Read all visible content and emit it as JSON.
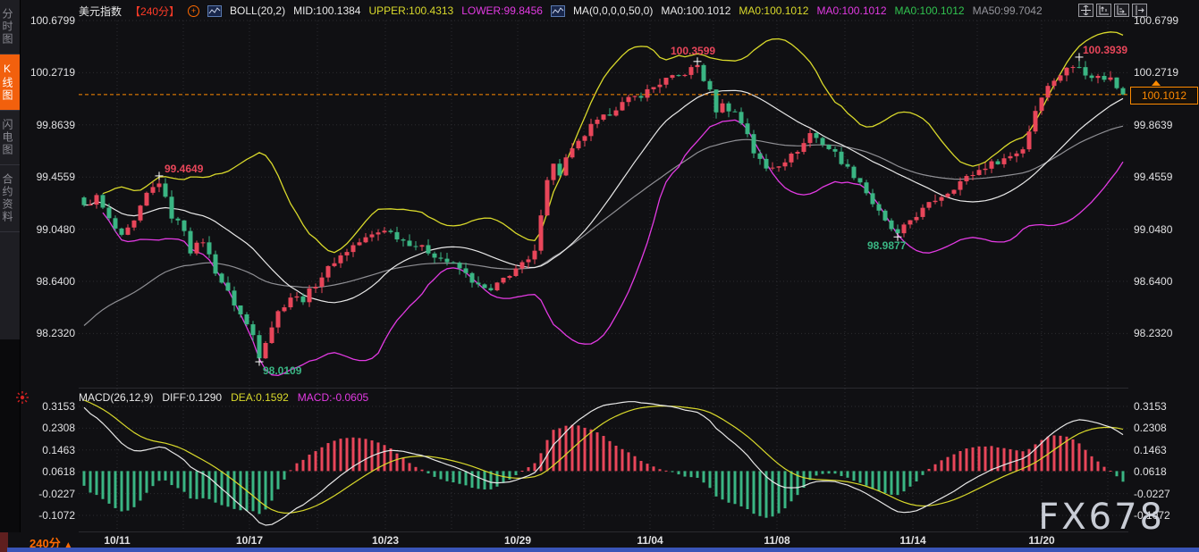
{
  "sidebar": {
    "tabs": [
      {
        "label": "分时图",
        "active": false
      },
      {
        "label": "K线图",
        "active": true
      },
      {
        "label": "闪电图",
        "active": false
      },
      {
        "label": "合约资料",
        "active": false
      }
    ]
  },
  "header": {
    "symbol": "美元指数",
    "period": "【240分】",
    "boll_label": "BOLL(20,2)",
    "boll_mid": "MID:100.1384",
    "boll_upper": "UPPER:100.4313",
    "boll_lower": "LOWER:99.8456",
    "ma_label": "MA(0,0,0,0,50,0)",
    "ma_items": [
      {
        "text": "MA0:100.1012",
        "color": "#e8e8e8"
      },
      {
        "text": "MA0:100.1012",
        "color": "#d9d92b"
      },
      {
        "text": "MA0:100.1012",
        "color": "#e23ae2"
      },
      {
        "text": "MA0:100.1012",
        "color": "#31c450"
      },
      {
        "text": "MA50:99.7042",
        "color": "#95959c"
      }
    ]
  },
  "toolbar": {
    "icons": [
      "pan-icon",
      "axis-zoom-up-icon",
      "axis-zoom-right-icon",
      "collapse-panel-icon"
    ]
  },
  "price_axis": {
    "ticks": [
      "100.6799",
      "100.2719",
      "99.8639",
      "99.4559",
      "99.0480",
      "98.6400",
      "98.2320"
    ]
  },
  "macd_axis": {
    "ticks": [
      "0.3153",
      "0.2308",
      "0.1463",
      "0.0618",
      "-0.0227",
      "-0.1072"
    ]
  },
  "x_axis": {
    "period_label": "240分",
    "dates": [
      "10/11",
      "10/17",
      "10/23",
      "10/29",
      "11/04",
      "11/08",
      "11/14",
      "11/20"
    ]
  },
  "price_tag": {
    "value": "100.1012"
  },
  "macd_header": {
    "label": "MACD(26,12,9)",
    "diff": "DIFF:0.1290",
    "dea": "DEA:0.1592",
    "macd": "MACD:-0.0605"
  },
  "watermark": "FX678",
  "chart_data": {
    "type": "candlestick",
    "title": "美元指数 240分",
    "timeframe_minutes": 240,
    "price_ticks": [
      100.6799,
      100.2719,
      99.8639,
      99.4559,
      99.048,
      98.64,
      98.232
    ],
    "macd_ticks": [
      0.3153,
      0.2308,
      0.1463,
      0.0618,
      -0.0227,
      -0.1072
    ],
    "dates": [
      "10/11",
      "10/17",
      "10/23",
      "10/29",
      "11/04",
      "11/08",
      "11/14",
      "11/20"
    ],
    "current_price": 100.1012,
    "boll": {
      "period": 20,
      "width": 2,
      "mid": 100.1384,
      "upper": 100.4313,
      "lower": 99.8456
    },
    "ma50": 99.7042,
    "macd": {
      "slow": 26,
      "fast": 12,
      "signal": 9,
      "diff": 0.129,
      "dea": 0.1592,
      "macd": -0.0605
    },
    "candle_count": 167,
    "close_keyframes": [
      [
        0,
        99.22
      ],
      [
        2,
        99.3
      ],
      [
        4,
        99.12
      ],
      [
        6,
        98.98
      ],
      [
        8,
        99.1
      ],
      [
        10,
        99.32
      ],
      [
        12,
        99.42
      ],
      [
        13,
        99.28
      ],
      [
        14,
        99.15
      ],
      [
        16,
        99.05
      ],
      [
        17,
        98.88
      ],
      [
        19,
        98.96
      ],
      [
        21,
        98.72
      ],
      [
        23,
        98.55
      ],
      [
        25,
        98.38
      ],
      [
        27,
        98.22
      ],
      [
        28,
        98.06
      ],
      [
        29,
        98.18
      ],
      [
        31,
        98.4
      ],
      [
        33,
        98.52
      ],
      [
        35,
        98.5
      ],
      [
        37,
        98.62
      ],
      [
        40,
        98.8
      ],
      [
        43,
        98.92
      ],
      [
        46,
        99.0
      ],
      [
        48,
        99.05
      ],
      [
        51,
        98.96
      ],
      [
        54,
        98.9
      ],
      [
        57,
        98.82
      ],
      [
        60,
        98.74
      ],
      [
        63,
        98.6
      ],
      [
        65,
        98.56
      ],
      [
        67,
        98.66
      ],
      [
        69,
        98.74
      ],
      [
        71,
        98.8
      ],
      [
        72,
        98.86
      ],
      [
        73,
        99.18
      ],
      [
        74,
        99.45
      ],
      [
        75,
        99.55
      ],
      [
        76,
        99.48
      ],
      [
        77,
        99.6
      ],
      [
        79,
        99.72
      ],
      [
        81,
        99.85
      ],
      [
        83,
        99.92
      ],
      [
        85,
        100.0
      ],
      [
        87,
        100.06
      ],
      [
        89,
        100.1
      ],
      [
        91,
        100.16
      ],
      [
        93,
        100.22
      ],
      [
        95,
        100.24
      ],
      [
        97,
        100.3
      ],
      [
        98,
        100.33
      ],
      [
        99,
        100.22
      ],
      [
        100,
        100.12
      ],
      [
        101,
        99.98
      ],
      [
        102,
        100.02
      ],
      [
        104,
        99.96
      ],
      [
        106,
        99.8
      ],
      [
        107,
        99.65
      ],
      [
        109,
        99.52
      ],
      [
        111,
        99.56
      ],
      [
        113,
        99.62
      ],
      [
        115,
        99.72
      ],
      [
        116,
        99.8
      ],
      [
        118,
        99.72
      ],
      [
        120,
        99.64
      ],
      [
        122,
        99.52
      ],
      [
        124,
        99.42
      ],
      [
        126,
        99.25
      ],
      [
        128,
        99.1
      ],
      [
        130,
        99.0
      ],
      [
        132,
        99.12
      ],
      [
        134,
        99.2
      ],
      [
        136,
        99.28
      ],
      [
        138,
        99.34
      ],
      [
        140,
        99.42
      ],
      [
        142,
        99.48
      ],
      [
        144,
        99.54
      ],
      [
        146,
        99.58
      ],
      [
        148,
        99.62
      ],
      [
        150,
        99.68
      ],
      [
        151,
        99.82
      ],
      [
        152,
        99.98
      ],
      [
        153,
        100.1
      ],
      [
        154,
        100.16
      ],
      [
        155,
        100.22
      ],
      [
        156,
        100.26
      ],
      [
        157,
        100.3
      ],
      [
        158,
        100.32
      ],
      [
        159,
        100.34
      ],
      [
        160,
        100.27
      ],
      [
        161,
        100.22
      ],
      [
        162,
        100.26
      ],
      [
        163,
        100.21
      ],
      [
        164,
        100.24
      ],
      [
        165,
        100.17
      ],
      [
        166,
        100.1012
      ]
    ],
    "extremes": [
      {
        "i": 12,
        "type": "high",
        "v": 99.4649
      },
      {
        "i": 28,
        "type": "low",
        "v": 98.0109
      },
      {
        "i": 98,
        "type": "high",
        "v": 100.3599
      },
      {
        "i": 130,
        "type": "low",
        "v": 98.9877
      },
      {
        "i": 159,
        "type": "high",
        "v": 100.3939
      }
    ],
    "colors": {
      "up": "#e8465a",
      "down": "#3ab583",
      "boll_upper": "#d9d92b",
      "boll_mid": "#e8e8e8",
      "boll_lower": "#e23ae2",
      "ma50": "#8f8f94",
      "macd_diff": "#e8e8e8",
      "macd_dea": "#d9d92b",
      "hist_pos": "#e8465a",
      "hist_neg": "#3ab583",
      "price_line": "#ff8a00",
      "grid": "#2c2c30"
    }
  }
}
